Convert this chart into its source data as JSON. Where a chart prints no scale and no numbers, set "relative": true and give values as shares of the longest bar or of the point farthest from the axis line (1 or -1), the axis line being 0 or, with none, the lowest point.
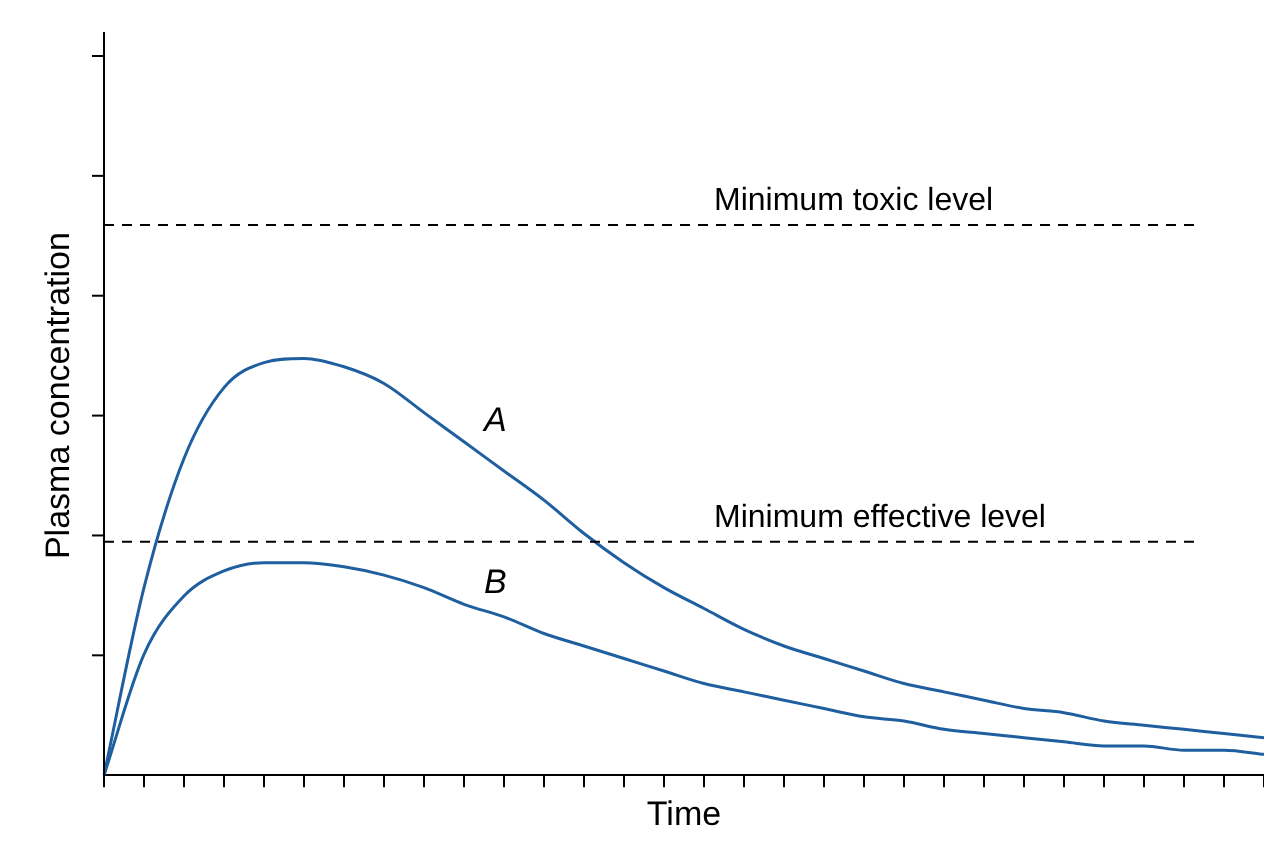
{
  "chart_data": {
    "type": "line",
    "relative": true,
    "xlabel": "Time",
    "ylabel": "Plasma concentration",
    "categories": [
      null,
      null,
      null,
      null,
      null,
      null,
      null,
      null,
      null,
      null,
      null,
      null,
      null,
      null,
      null,
      null,
      null,
      null,
      null,
      null,
      null,
      null,
      null,
      null,
      null,
      null,
      null,
      null,
      null,
      null
    ],
    "series": [
      {
        "name": "A",
        "color": "#1f5fa0",
        "values": [
          0,
          0.45,
          0.76,
          0.93,
          0.99,
          1,
          0.98,
          0.94,
          0.87,
          0.8,
          0.73,
          0.66,
          0.58,
          0.51,
          0.45,
          0.4,
          0.35,
          0.31,
          0.28,
          0.25,
          0.22,
          0.2,
          0.18,
          0.16,
          0.15,
          0.13,
          0.12,
          0.11,
          0.1,
          0.09
        ]
      },
      {
        "name": "B",
        "color": "#1f5fa0",
        "values": [
          0,
          0.29,
          0.43,
          0.49,
          0.51,
          0.51,
          0.5,
          0.48,
          0.45,
          0.41,
          0.38,
          0.34,
          0.31,
          0.28,
          0.25,
          0.22,
          0.2,
          0.18,
          0.16,
          0.14,
          0.13,
          0.11,
          0.1,
          0.09,
          0.08,
          0.07,
          0.07,
          0.06,
          0.06,
          0.05
        ]
      }
    ],
    "ref_lines": [
      {
        "axis": "y",
        "value": 1.32,
        "label": "Minimum toxic level",
        "color": "#000000",
        "line_style": "dashed"
      },
      {
        "axis": "y",
        "value": 0.56,
        "label": "Minimum effective level",
        "color": "#000000",
        "line_style": "dashed"
      }
    ],
    "marker": "none",
    "line_style": "solid",
    "grid": false,
    "legend": false,
    "tick_labels": false
  }
}
